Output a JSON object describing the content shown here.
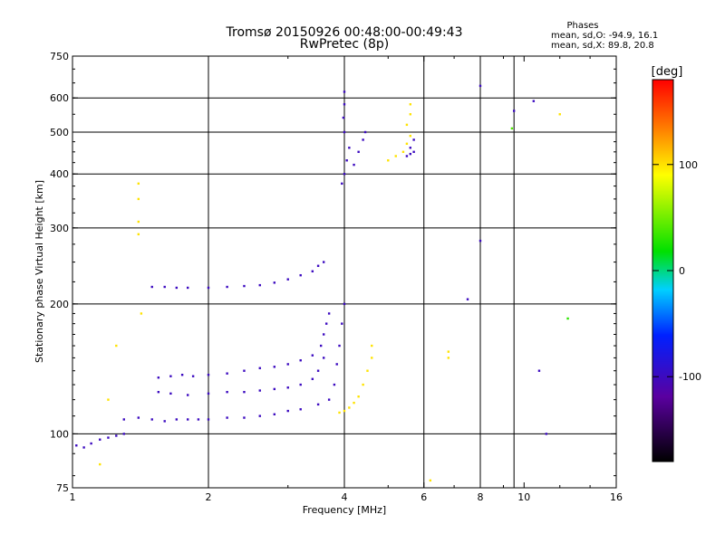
{
  "chart_data": {
    "type": "scatter",
    "title": "Tromsø 20150926 00:48:00-00:49:43",
    "subtitle": "RwPretec (8p)",
    "xlabel": "Frequency [MHz]",
    "ylabel": "Stationary phase Virtual Height [km]",
    "x_scale": "log",
    "y_scale": "log",
    "xlim": [
      1,
      16
    ],
    "ylim": [
      75,
      750
    ],
    "x_ticks": [
      1,
      2,
      4,
      6,
      8,
      10,
      16
    ],
    "y_ticks": [
      75,
      100,
      200,
      300,
      400,
      500,
      600,
      750
    ],
    "grid_x": [
      2,
      4,
      6,
      8,
      9.5
    ],
    "grid_y": [
      100,
      200,
      300,
      400,
      500,
      600
    ],
    "phase_stats": {
      "title": "Phases",
      "line_o": "mean, sd,O: -94.9, 16.1",
      "line_x": "mean, sd,X: 89.8, 20.8"
    },
    "colorbar": {
      "label": "[deg]",
      "range": [
        -180,
        180
      ],
      "ticks": [
        100,
        0,
        -100
      ]
    },
    "series": [
      {
        "points": [
          [
            1.02,
            94,
            -100
          ],
          [
            1.06,
            93,
            -100
          ],
          [
            1.1,
            95,
            -100
          ],
          [
            1.15,
            97,
            -100
          ],
          [
            1.2,
            98,
            -100
          ],
          [
            1.25,
            99,
            -100
          ],
          [
            1.3,
            100,
            -100
          ]
        ]
      },
      {
        "points": [
          [
            1.3,
            108,
            -100
          ],
          [
            1.4,
            109,
            -100
          ],
          [
            1.5,
            108,
            -100
          ],
          [
            1.6,
            107,
            -100
          ],
          [
            1.7,
            108,
            -100
          ],
          [
            1.8,
            108,
            -100
          ],
          [
            1.9,
            108,
            -100
          ],
          [
            2.0,
            108,
            -100
          ],
          [
            2.2,
            109,
            -100
          ],
          [
            2.4,
            109,
            -100
          ],
          [
            2.6,
            110,
            -100
          ],
          [
            2.8,
            111,
            -100
          ],
          [
            3.0,
            113,
            -100
          ],
          [
            3.2,
            114,
            -100
          ],
          [
            3.5,
            117,
            -100
          ],
          [
            3.7,
            120,
            -100
          ],
          [
            3.8,
            130,
            -100
          ],
          [
            3.85,
            145,
            -100
          ],
          [
            3.9,
            160,
            -100
          ],
          [
            3.95,
            180,
            -100
          ],
          [
            4.0,
            200,
            -100
          ]
        ]
      },
      {
        "points": [
          [
            1.55,
            135,
            -100
          ],
          [
            1.65,
            136,
            -100
          ],
          [
            1.75,
            137,
            -100
          ],
          [
            1.85,
            136,
            -100
          ],
          [
            2.0,
            137,
            -100
          ],
          [
            2.2,
            138,
            -100
          ],
          [
            2.4,
            140,
            -100
          ],
          [
            2.6,
            142,
            -100
          ],
          [
            2.8,
            143,
            -100
          ],
          [
            3.0,
            145,
            -100
          ],
          [
            3.2,
            148,
            -100
          ],
          [
            3.4,
            152,
            -100
          ],
          [
            3.55,
            160,
            -100
          ],
          [
            3.6,
            170,
            -100
          ],
          [
            3.65,
            180,
            -100
          ],
          [
            3.7,
            190,
            -100
          ]
        ]
      },
      {
        "points": [
          [
            1.55,
            125,
            -100
          ],
          [
            1.65,
            124,
            -100
          ],
          [
            1.8,
            123,
            -100
          ],
          [
            2.0,
            124,
            -100
          ],
          [
            2.2,
            125,
            -100
          ],
          [
            2.4,
            125,
            -100
          ],
          [
            2.6,
            126,
            -100
          ],
          [
            2.8,
            127,
            -100
          ],
          [
            3.0,
            128,
            -100
          ],
          [
            3.2,
            130,
            -100
          ],
          [
            3.4,
            134,
            -100
          ],
          [
            3.5,
            140,
            -100
          ],
          [
            3.6,
            150,
            -100
          ]
        ]
      },
      {
        "points": [
          [
            1.5,
            219,
            -100
          ],
          [
            1.6,
            219,
            -100
          ],
          [
            1.7,
            218,
            -100
          ],
          [
            1.8,
            218,
            -100
          ],
          [
            2.0,
            218,
            -100
          ],
          [
            2.2,
            219,
            -100
          ],
          [
            2.4,
            220,
            -100
          ],
          [
            2.6,
            221,
            -100
          ],
          [
            2.8,
            224,
            -100
          ],
          [
            3.0,
            228,
            -100
          ],
          [
            3.2,
            233,
            -100
          ],
          [
            3.4,
            238,
            -100
          ],
          [
            3.5,
            245,
            -100
          ],
          [
            3.6,
            250,
            -100
          ]
        ]
      },
      {
        "points": [
          [
            3.95,
            380,
            -100
          ],
          [
            4.0,
            400,
            -100
          ],
          [
            4.05,
            430,
            -100
          ],
          [
            4.1,
            460,
            -100
          ],
          [
            4.0,
            500,
            -100
          ],
          [
            3.98,
            540,
            -100
          ],
          [
            4.0,
            580,
            -100
          ],
          [
            4.0,
            620,
            -100
          ],
          [
            4.2,
            420,
            -100
          ],
          [
            4.3,
            450,
            -100
          ],
          [
            4.4,
            480,
            -100
          ],
          [
            4.45,
            500,
            -100
          ]
        ]
      },
      {
        "points": [
          [
            3.9,
            112,
            100
          ],
          [
            4.0,
            113,
            100
          ],
          [
            4.1,
            115,
            100
          ],
          [
            4.2,
            118,
            100
          ],
          [
            4.3,
            122,
            100
          ],
          [
            4.4,
            130,
            100
          ],
          [
            4.5,
            140,
            100
          ],
          [
            4.6,
            150,
            100
          ],
          [
            4.6,
            160,
            100
          ]
        ]
      },
      {
        "points": [
          [
            5.0,
            430,
            100
          ],
          [
            5.2,
            440,
            100
          ],
          [
            5.4,
            450,
            100
          ],
          [
            5.5,
            470,
            100
          ],
          [
            5.6,
            490,
            100
          ],
          [
            5.5,
            520,
            100
          ],
          [
            5.6,
            550,
            100
          ],
          [
            5.6,
            580,
            100
          ]
        ]
      },
      {
        "points": [
          [
            5.5,
            440,
            -100
          ],
          [
            5.6,
            445,
            -100
          ],
          [
            5.7,
            450,
            -100
          ],
          [
            5.6,
            460,
            -100
          ],
          [
            5.7,
            480,
            -100
          ]
        ]
      },
      {
        "points": [
          [
            1.4,
            380,
            100
          ],
          [
            1.4,
            350,
            100
          ],
          [
            1.4,
            310,
            100
          ],
          [
            1.4,
            290,
            100
          ],
          [
            1.42,
            190,
            100
          ],
          [
            1.25,
            160,
            100
          ],
          [
            1.2,
            120,
            100
          ],
          [
            1.15,
            85,
            100
          ]
        ]
      },
      {
        "points": [
          [
            8.0,
            640,
            -100
          ],
          [
            10.5,
            590,
            -100
          ],
          [
            8.0,
            280,
            -100
          ],
          [
            7.5,
            205,
            -100
          ],
          [
            9.5,
            560,
            -100
          ],
          [
            9.4,
            510,
            40
          ],
          [
            12.0,
            550,
            100
          ],
          [
            12.5,
            185,
            30
          ],
          [
            6.8,
            155,
            100
          ],
          [
            6.8,
            150,
            100
          ],
          [
            10.8,
            140,
            -100
          ],
          [
            11.2,
            100,
            -100
          ],
          [
            6.2,
            78,
            100
          ]
        ]
      }
    ]
  }
}
